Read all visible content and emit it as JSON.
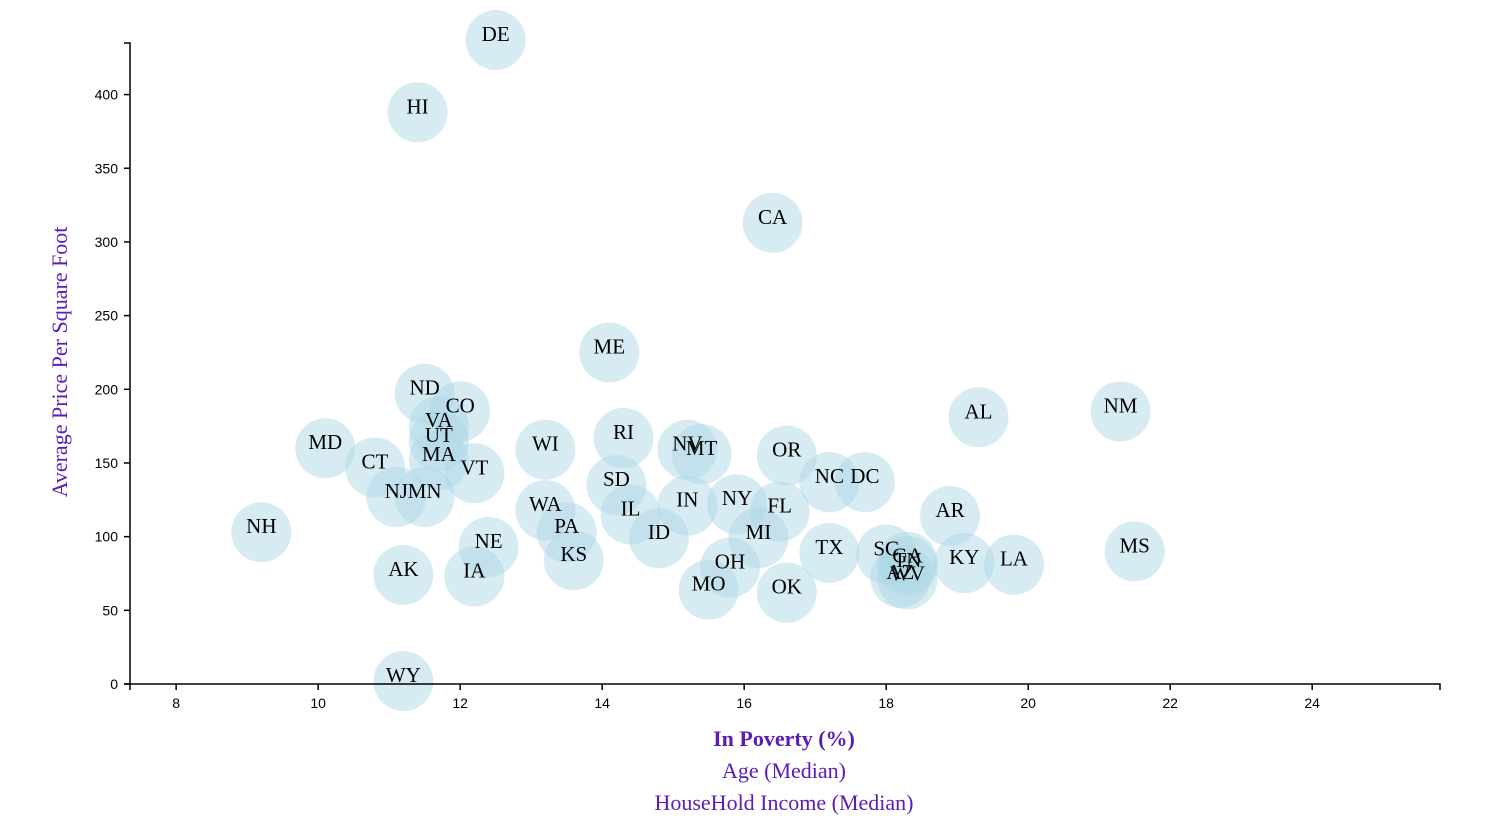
{
  "chart_data": {
    "type": "scatter",
    "xlim": [
      7.35,
      25.8
    ],
    "ylim": [
      0,
      435
    ],
    "x_ticks": [
      "8",
      "10",
      "12",
      "14",
      "16",
      "18",
      "20",
      "22",
      "24"
    ],
    "y_ticks": [
      "0",
      "50",
      "100",
      "150",
      "200",
      "250",
      "300",
      "350",
      "400"
    ],
    "ylabel": "Average Price Per Square Foot",
    "x_axis_options": [
      {
        "label": "In Poverty (%)",
        "active": true
      },
      {
        "label": "Age (Median)",
        "active": false
      },
      {
        "label": "HouseHold Income (Median)",
        "active": false
      }
    ],
    "marker_color": "#add8e6",
    "axis_title_color": "#5b1bb8",
    "points": [
      {
        "state": "DE",
        "x": 12.5,
        "y": 437
      },
      {
        "state": "HI",
        "x": 11.4,
        "y": 388
      },
      {
        "state": "CA",
        "x": 16.4,
        "y": 313
      },
      {
        "state": "ME",
        "x": 14.1,
        "y": 225
      },
      {
        "state": "ND",
        "x": 11.5,
        "y": 197
      },
      {
        "state": "CO",
        "x": 12.0,
        "y": 185
      },
      {
        "state": "VA",
        "x": 11.7,
        "y": 175
      },
      {
        "state": "UT",
        "x": 11.7,
        "y": 165
      },
      {
        "state": "MD",
        "x": 10.1,
        "y": 160
      },
      {
        "state": "MA",
        "x": 11.7,
        "y": 152
      },
      {
        "state": "CT",
        "x": 10.8,
        "y": 147
      },
      {
        "state": "VT",
        "x": 12.2,
        "y": 143
      },
      {
        "state": "NJ",
        "x": 11.1,
        "y": 127
      },
      {
        "state": "MN",
        "x": 11.5,
        "y": 127
      },
      {
        "state": "NH",
        "x": 9.2,
        "y": 103
      },
      {
        "state": "WI",
        "x": 13.2,
        "y": 159
      },
      {
        "state": "RI",
        "x": 14.3,
        "y": 167
      },
      {
        "state": "NV",
        "x": 15.2,
        "y": 159
      },
      {
        "state": "MT",
        "x": 15.4,
        "y": 156
      },
      {
        "state": "OR",
        "x": 16.6,
        "y": 155
      },
      {
        "state": "SD",
        "x": 14.2,
        "y": 135
      },
      {
        "state": "NC",
        "x": 17.2,
        "y": 137
      },
      {
        "state": "DC",
        "x": 17.7,
        "y": 137
      },
      {
        "state": "AL",
        "x": 19.3,
        "y": 181
      },
      {
        "state": "NM",
        "x": 21.3,
        "y": 185
      },
      {
        "state": "WA",
        "x": 13.2,
        "y": 118
      },
      {
        "state": "IL",
        "x": 14.4,
        "y": 115
      },
      {
        "state": "IN",
        "x": 15.2,
        "y": 121
      },
      {
        "state": "NY",
        "x": 15.9,
        "y": 122
      },
      {
        "state": "FL",
        "x": 16.5,
        "y": 117
      },
      {
        "state": "AR",
        "x": 18.9,
        "y": 114
      },
      {
        "state": "PA",
        "x": 13.5,
        "y": 103
      },
      {
        "state": "ID",
        "x": 14.8,
        "y": 99
      },
      {
        "state": "MI",
        "x": 16.2,
        "y": 99
      },
      {
        "state": "NE",
        "x": 12.4,
        "y": 93
      },
      {
        "state": "KS",
        "x": 13.6,
        "y": 84
      },
      {
        "state": "TX",
        "x": 17.2,
        "y": 89
      },
      {
        "state": "SC",
        "x": 18.0,
        "y": 88
      },
      {
        "state": "GA",
        "x": 18.3,
        "y": 83
      },
      {
        "state": "TN",
        "x": 18.3,
        "y": 80
      },
      {
        "state": "AZ",
        "x": 18.2,
        "y": 72
      },
      {
        "state": "WV",
        "x": 18.3,
        "y": 71
      },
      {
        "state": "KY",
        "x": 19.1,
        "y": 82
      },
      {
        "state": "LA",
        "x": 19.8,
        "y": 81
      },
      {
        "state": "MS",
        "x": 21.5,
        "y": 90
      },
      {
        "state": "OH",
        "x": 15.8,
        "y": 79
      },
      {
        "state": "MO",
        "x": 15.5,
        "y": 64
      },
      {
        "state": "OK",
        "x": 16.6,
        "y": 62
      },
      {
        "state": "AK",
        "x": 11.2,
        "y": 74
      },
      {
        "state": "IA",
        "x": 12.2,
        "y": 73
      },
      {
        "state": "WY",
        "x": 11.2,
        "y": 2
      }
    ]
  }
}
